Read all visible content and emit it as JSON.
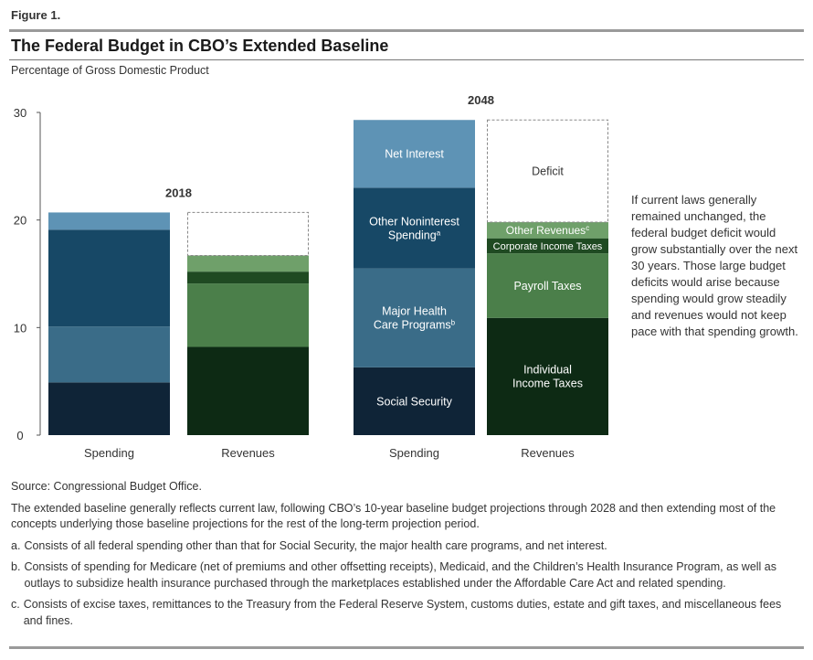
{
  "figure": {
    "label": "Figure 1.",
    "title": "The Federal Budget in CBO’s Extended Baseline",
    "subtitle": "Percentage of Gross Domestic Product"
  },
  "annotation": "If current laws generally remained unchanged, the federal budget deficit would grow substantially over the next 30 years. Those large budget deficits would arise because spending would grow steadily and revenues would not keep pace with that spending growth.",
  "notes": {
    "source": "Source: Congressional Budget Office.",
    "description": "The extended baseline generally reflects current law, following CBO’s 10-year baseline budget projections through 2028 and then extending most of the concepts underlying those baseline projections for the rest of the long-term projection period.",
    "footnotes": [
      {
        "key": "a.",
        "text": "Consists of all federal spending other than that for Social Security, the major health care programs, and net interest."
      },
      {
        "key": "b.",
        "text": "Consists of spending for Medicare (net of premiums and other offsetting receipts), Medicaid, and the Children’s Health Insurance Program, as well as outlays to subsidize health insurance purchased through the marketplaces established under the Affordable Care Act and related spending."
      },
      {
        "key": "c.",
        "text": "Consists of excise taxes, remittances to the Treasury from the Federal Reserve System, customs duties, estate and gift taxes, and miscellaneous fees and fines."
      }
    ]
  },
  "colors": {
    "social_security": "#0f2437",
    "major_health": "#3a6c88",
    "other_noninterest": "#174866",
    "net_interest": "#5e93b5",
    "individual_income": "#0d2a14",
    "payroll": "#4b7f4a",
    "corporate": "#1f4a22",
    "other_revenues": "#6fa06a",
    "axis": "#555555",
    "text_on_dark": "#ffffff",
    "text_label": "#333333",
    "deficit_border": "#888888"
  },
  "chart_data": {
    "type": "bar",
    "stacked": true,
    "ylabel": "",
    "ylim": [
      0,
      30
    ],
    "yticks": [
      0,
      10,
      20,
      30
    ],
    "panels": [
      {
        "year": "2018",
        "bars": [
          {
            "category": "Spending",
            "segments": [
              {
                "name": "Social Security",
                "value": 4.9,
                "color_key": "social_security",
                "label": ""
              },
              {
                "name": "Major Health Care Programs",
                "value": 5.2,
                "color_key": "major_health",
                "label": ""
              },
              {
                "name": "Other Noninterest Spending",
                "value": 9.0,
                "color_key": "other_noninterest",
                "label": ""
              },
              {
                "name": "Net Interest",
                "value": 1.6,
                "color_key": "net_interest",
                "label": ""
              }
            ]
          },
          {
            "category": "Revenues",
            "segments": [
              {
                "name": "Individual Income Taxes",
                "value": 8.2,
                "color_key": "individual_income",
                "label": ""
              },
              {
                "name": "Payroll Taxes",
                "value": 5.9,
                "color_key": "payroll",
                "label": ""
              },
              {
                "name": "Corporate Income Taxes",
                "value": 1.1,
                "color_key": "corporate",
                "label": ""
              },
              {
                "name": "Other Revenues",
                "value": 1.5,
                "color_key": "other_revenues",
                "label": ""
              },
              {
                "name": "Deficit",
                "value": 4.0,
                "deficit": true,
                "label": ""
              }
            ]
          }
        ]
      },
      {
        "year": "2048",
        "bars": [
          {
            "category": "Spending",
            "segments": [
              {
                "name": "Social Security",
                "value": 6.3,
                "color_key": "social_security",
                "label": "Social Security"
              },
              {
                "name": "Major Health Care Programs",
                "value": 9.2,
                "color_key": "major_health",
                "label": "Major Health Care Programs",
                "lines": [
                  "Major Health",
                  "Care Programs"
                ],
                "footnote": "b"
              },
              {
                "name": "Other Noninterest Spending",
                "value": 7.5,
                "color_key": "other_noninterest",
                "label": "Other Noninterest Spending",
                "lines": [
                  "Other Noninterest",
                  "Spending"
                ],
                "footnote": "a"
              },
              {
                "name": "Net Interest",
                "value": 6.3,
                "color_key": "net_interest",
                "label": "Net Interest"
              }
            ]
          },
          {
            "category": "Revenues",
            "segments": [
              {
                "name": "Individual Income Taxes",
                "value": 10.9,
                "color_key": "individual_income",
                "label": "Individual Income Taxes",
                "lines": [
                  "Individual",
                  "Income Taxes"
                ]
              },
              {
                "name": "Payroll Taxes",
                "value": 6.0,
                "color_key": "payroll",
                "label": "Payroll Taxes"
              },
              {
                "name": "Corporate Income Taxes",
                "value": 1.4,
                "color_key": "corporate",
                "label": "Corporate Income Taxes"
              },
              {
                "name": "Other Revenues",
                "value": 1.5,
                "color_key": "other_revenues",
                "label": "Other Revenues",
                "footnote": "c"
              },
              {
                "name": "Deficit",
                "value": 9.5,
                "deficit": true,
                "label": "Deficit"
              }
            ]
          }
        ]
      }
    ]
  }
}
